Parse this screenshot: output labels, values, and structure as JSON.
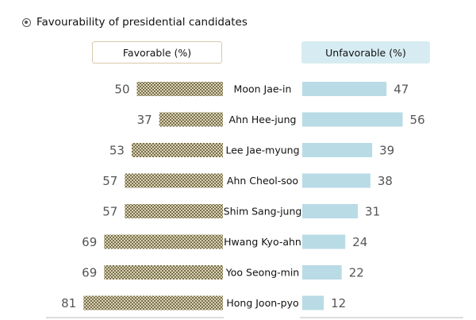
{
  "title": "Favourability of presidential candidates",
  "icon": "target-icon",
  "colors": {
    "favorable": "#8a7f58",
    "unfavorable": "#b9dbe5",
    "value_text": "#555555",
    "axis_line": "#bbbbbb"
  },
  "chart_data": {
    "type": "bar",
    "orientation": "diverging-horizontal",
    "headers": {
      "favorable": "Favorable (%)",
      "unfavorable": "Unfavorable (%)"
    },
    "categories": [
      "Moon Jae-in",
      "Ahn Hee-jung",
      "Lee Jae-myung",
      "Ahn Cheol-soo",
      "Shim Sang-jung",
      "Hwang Kyo-ahn",
      "Yoo Seong-min",
      "Hong Joon-pyo"
    ],
    "series": [
      {
        "name": "Favorable (%)",
        "values": [
          50,
          37,
          53,
          57,
          57,
          69,
          69,
          81
        ]
      },
      {
        "name": "Unfavorable (%)",
        "values": [
          47,
          56,
          39,
          38,
          31,
          24,
          22,
          12
        ]
      }
    ],
    "grid": false,
    "legend": "top"
  }
}
